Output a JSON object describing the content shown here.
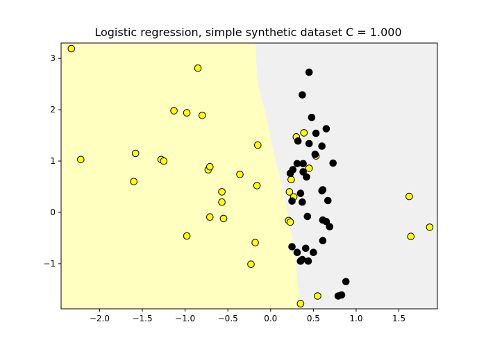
{
  "chart_data": {
    "type": "scatter",
    "title": "Logistic regression, simple synthetic dataset C = 1.000",
    "xlabel": "",
    "ylabel": "",
    "xlim": [
      -2.45,
      1.95
    ],
    "ylim": [
      -1.88,
      3.3
    ],
    "x_ticks": [
      -2.0,
      -1.5,
      -1.0,
      -0.5,
      0.0,
      0.5,
      1.0,
      1.5
    ],
    "x_tick_labels": [
      "−2.0",
      "−1.5",
      "−1.0",
      "−0.5",
      "0.0",
      "0.5",
      "1.0",
      "1.5"
    ],
    "y_ticks": [
      -1,
      0,
      1,
      2,
      3
    ],
    "y_tick_labels": [
      "−1",
      "0",
      "1",
      "2",
      "3"
    ],
    "grid": false,
    "decision_regions": {
      "left_class_color": "#ffffbf",
      "right_class_color": "#f0f0f0",
      "boundary": [
        [
          -0.18,
          3.3
        ],
        [
          -0.15,
          2.5
        ],
        [
          -0.07,
          2.0
        ],
        [
          0.03,
          1.2
        ],
        [
          0.14,
          0.5
        ],
        [
          0.22,
          -0.2
        ],
        [
          0.29,
          -0.9
        ],
        [
          0.34,
          -1.88
        ]
      ]
    },
    "series": [
      {
        "marker_fill": "#ffff00",
        "marker_edge": "#000000",
        "points": [
          [
            -2.33,
            3.19
          ],
          [
            -0.85,
            2.81
          ],
          [
            -1.13,
            1.98
          ],
          [
            -0.98,
            1.94
          ],
          [
            -0.8,
            1.89
          ],
          [
            -2.22,
            1.03
          ],
          [
            -1.58,
            1.15
          ],
          [
            -1.28,
            1.03
          ],
          [
            -1.25,
            1.0
          ],
          [
            -0.73,
            0.83
          ],
          [
            -0.71,
            0.89
          ],
          [
            -0.36,
            0.74
          ],
          [
            -0.15,
            1.31
          ],
          [
            -1.6,
            0.6
          ],
          [
            -0.57,
            0.4
          ],
          [
            -0.57,
            0.2
          ],
          [
            -0.71,
            -0.09
          ],
          [
            -0.55,
            -0.12
          ],
          [
            -0.16,
            0.52
          ],
          [
            -0.98,
            -0.46
          ],
          [
            -0.18,
            -0.59
          ],
          [
            -0.23,
            -1.01
          ],
          [
            0.3,
            1.47
          ],
          [
            0.39,
            1.55
          ],
          [
            0.53,
            1.1
          ],
          [
            0.24,
            0.64
          ],
          [
            0.45,
            0.86
          ],
          [
            0.22,
            0.4
          ],
          [
            0.27,
            0.3
          ],
          [
            0.21,
            -0.16
          ],
          [
            0.23,
            -0.19
          ],
          [
            0.35,
            -0.95
          ],
          [
            0.55,
            -1.63
          ],
          [
            0.35,
            -1.78
          ],
          [
            1.62,
            0.31
          ],
          [
            1.64,
            -0.47
          ],
          [
            1.86,
            -0.29
          ]
        ]
      },
      {
        "marker_fill": "#000000",
        "marker_edge": "#000000",
        "points": [
          [
            0.45,
            2.73
          ],
          [
            0.37,
            2.29
          ],
          [
            0.48,
            1.85
          ],
          [
            0.65,
            1.63
          ],
          [
            0.53,
            1.54
          ],
          [
            0.32,
            1.39
          ],
          [
            0.45,
            1.34
          ],
          [
            0.6,
            1.29
          ],
          [
            0.52,
            1.13
          ],
          [
            0.31,
            0.95
          ],
          [
            0.38,
            0.95
          ],
          [
            0.73,
            0.96
          ],
          [
            0.26,
            0.83
          ],
          [
            0.38,
            0.79
          ],
          [
            0.23,
            0.76
          ],
          [
            0.42,
            0.69
          ],
          [
            0.61,
            0.44
          ],
          [
            0.6,
            0.42
          ],
          [
            0.35,
            0.37
          ],
          [
            0.25,
            0.22
          ],
          [
            0.37,
            0.2
          ],
          [
            0.67,
            0.23
          ],
          [
            0.43,
            -0.08
          ],
          [
            0.61,
            -0.15
          ],
          [
            0.65,
            -0.18
          ],
          [
            0.69,
            -0.28
          ],
          [
            0.61,
            -0.55
          ],
          [
            0.25,
            -0.67
          ],
          [
            0.41,
            -0.7
          ],
          [
            0.31,
            -0.78
          ],
          [
            0.5,
            -0.78
          ],
          [
            0.37,
            -0.92
          ],
          [
            0.35,
            -0.95
          ],
          [
            0.44,
            -0.95
          ],
          [
            0.88,
            -1.35
          ],
          [
            0.83,
            -1.61
          ],
          [
            0.79,
            -1.63
          ]
        ]
      }
    ]
  }
}
